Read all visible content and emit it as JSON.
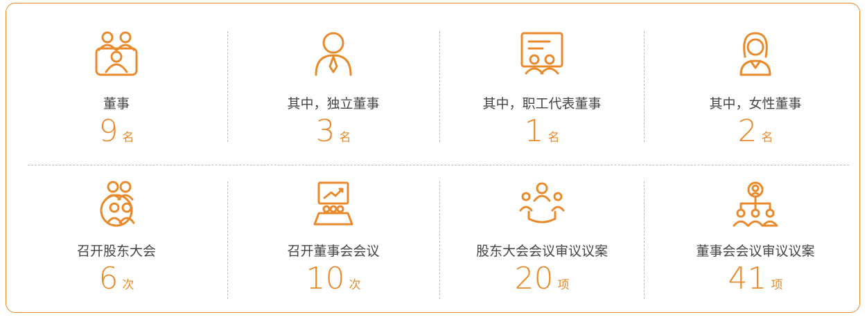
{
  "items": [
    {
      "label": "董事",
      "value": 9,
      "unit": "名"
    },
    {
      "label": "其中，独立董事",
      "value": 3,
      "unit": "名"
    },
    {
      "label": "其中，职工代表董事",
      "value": 1,
      "unit": "名"
    },
    {
      "label": "其中，女性董事",
      "value": 2,
      "unit": "名"
    },
    {
      "label": "召开股东大会",
      "value": 6,
      "unit": "次"
    },
    {
      "label": "召开董事会会议",
      "value": 10,
      "unit": "次"
    },
    {
      "label": "股东大会会议审议议案",
      "value": 20,
      "unit": "项"
    },
    {
      "label": "董事会会议审议议案",
      "value": 41,
      "unit": "项"
    }
  ]
}
